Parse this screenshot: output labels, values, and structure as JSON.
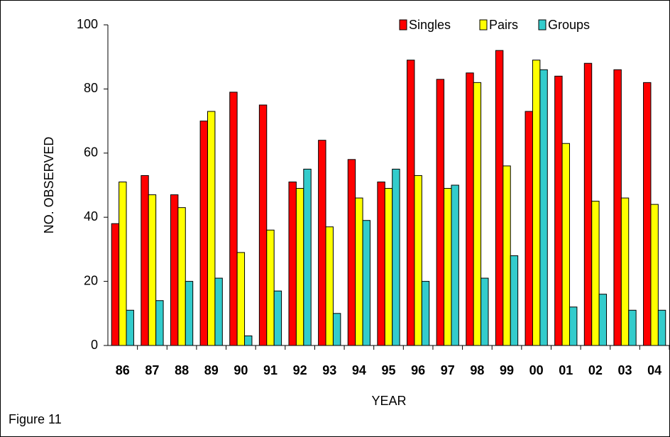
{
  "chart_data": {
    "type": "bar",
    "caption": "Figure 11",
    "xlabel": "YEAR",
    "ylabel": "NO. OBSERVED",
    "categories": [
      "86",
      "87",
      "88",
      "89",
      "90",
      "91",
      "92",
      "93",
      "94",
      "95",
      "96",
      "97",
      "98",
      "99",
      "00",
      "01",
      "02",
      "03",
      "04"
    ],
    "series": [
      {
        "name": "Singles",
        "color": "#ff0000",
        "values": [
          38,
          53,
          47,
          70,
          79,
          75,
          51,
          64,
          58,
          51,
          89,
          83,
          85,
          92,
          73,
          84,
          88,
          86,
          82
        ]
      },
      {
        "name": "Pairs",
        "color": "#ffff00",
        "values": [
          51,
          47,
          43,
          73,
          29,
          36,
          49,
          37,
          46,
          49,
          53,
          49,
          82,
          56,
          89,
          63,
          45,
          46,
          44
        ]
      },
      {
        "name": "Groups",
        "color": "#33cccc",
        "values": [
          11,
          14,
          20,
          21,
          3,
          17,
          55,
          10,
          39,
          55,
          20,
          50,
          21,
          28,
          86,
          12,
          16,
          11,
          11
        ]
      }
    ],
    "ylim": [
      0,
      100
    ],
    "yticks": [
      0,
      20,
      40,
      60,
      80,
      100
    ],
    "grid": false,
    "legend": "top-right"
  }
}
